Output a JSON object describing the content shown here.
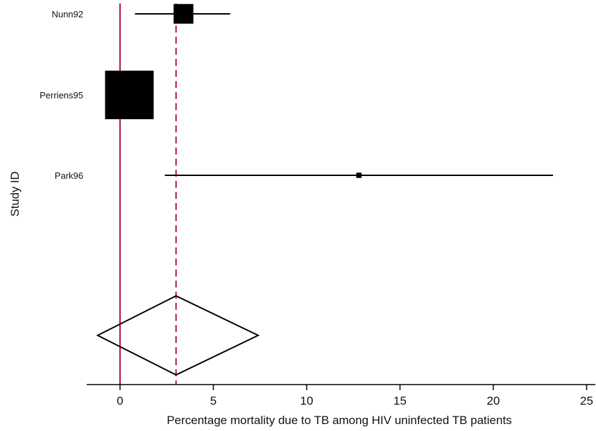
{
  "chart_data": {
    "type": "forest",
    "xlabel": "Percentage mortality due to TB among HIV uninfected TB patients",
    "ylabel": "Study ID",
    "xlim": [
      -1.8,
      25.5
    ],
    "xticks": [
      0,
      5,
      10,
      15,
      20,
      25
    ],
    "xtick_labels": [
      "0",
      "5",
      "10",
      "15",
      "20",
      "25"
    ],
    "studies": [
      {
        "label": "Nunn92",
        "estimate": 3.4,
        "ci_low": 0.8,
        "ci_high": 5.9,
        "weight": 0.14
      },
      {
        "label": "Perriens95",
        "estimate": 0.5,
        "ci_low": -0.8,
        "ci_high": 1.8,
        "weight": 0.85
      },
      {
        "label": "Park96",
        "estimate": 12.8,
        "ci_low": 2.4,
        "ci_high": 23.2,
        "weight": 0.01
      }
    ],
    "pooled": {
      "estimate": 3.0,
      "ci_low": -1.2,
      "ci_high": 7.4
    },
    "null_line": 0,
    "colors": {
      "reference_line": "#b3123d",
      "markers": "#000000"
    },
    "grid": false
  }
}
